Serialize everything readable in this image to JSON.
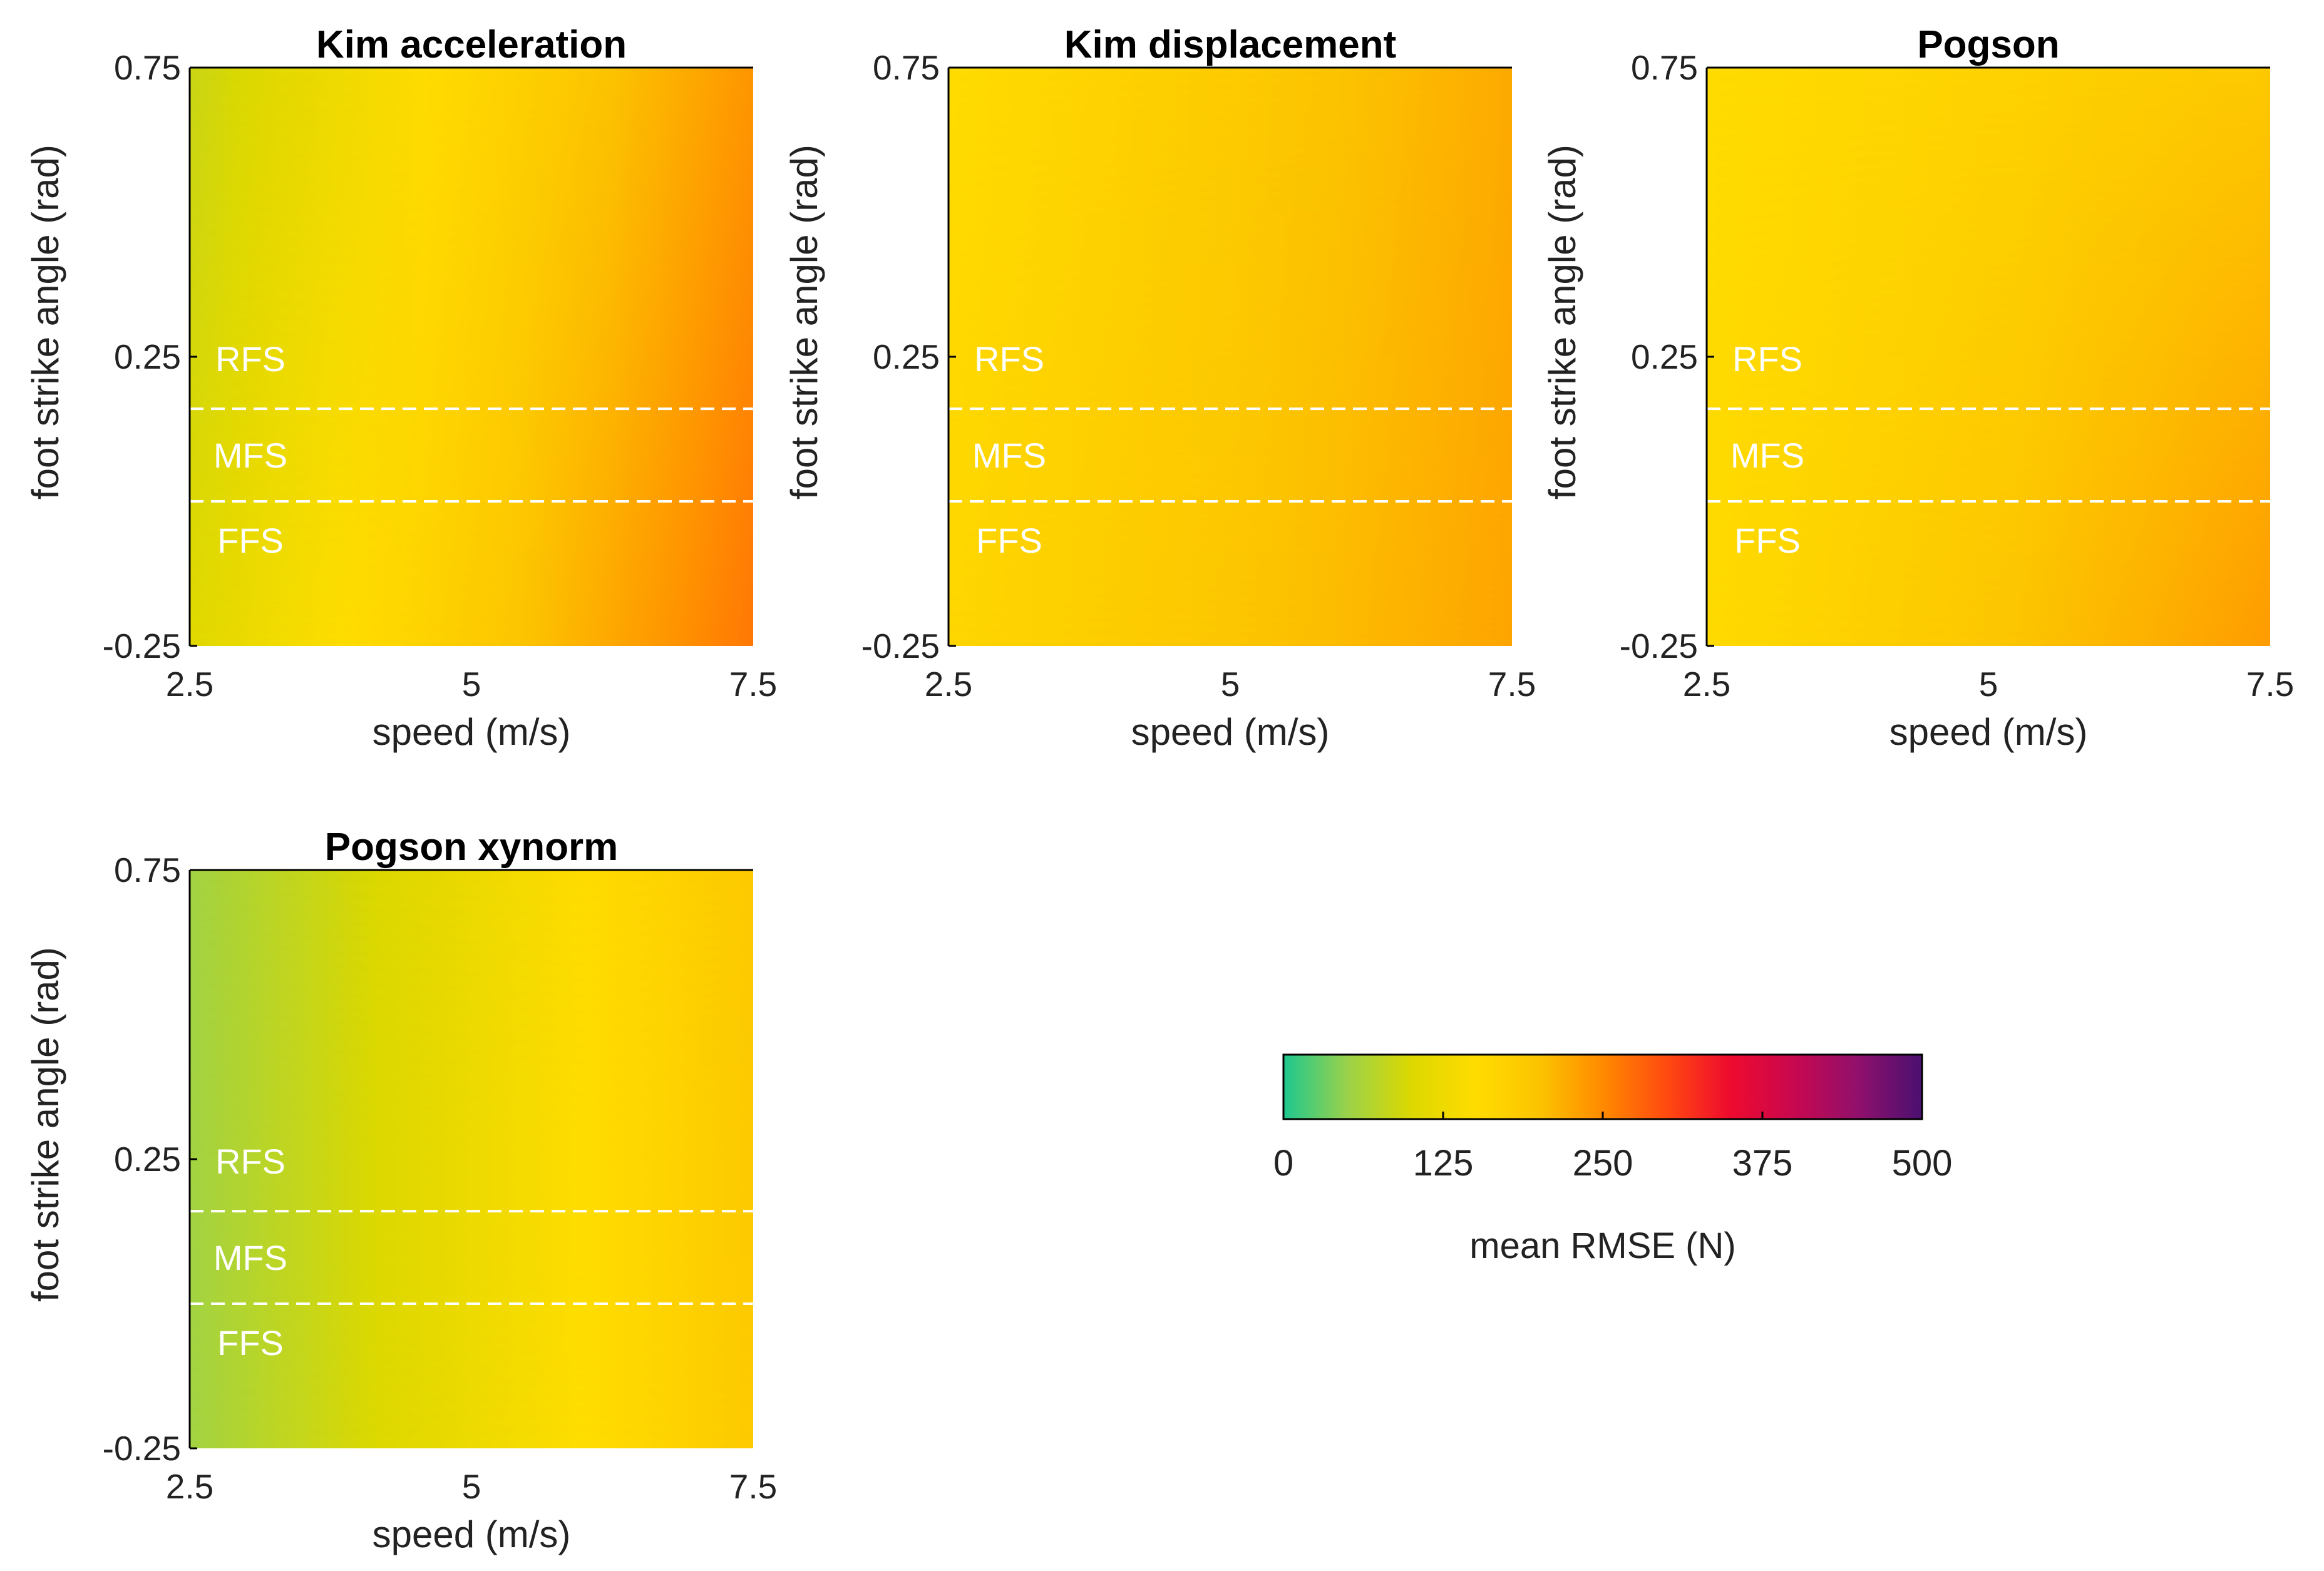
{
  "chart_data": [
    {
      "type": "heatmap",
      "title": "Kim acceleration",
      "xlabel": "speed (m/s)",
      "ylabel": "foot strike angle (rad)",
      "xlim": [
        2.5,
        7.5
      ],
      "ylim": [
        -0.25,
        0.75
      ],
      "xticks": [
        "2.5",
        "5",
        "7.5"
      ],
      "yticks": [
        "-0.25",
        "0.25",
        "0.75"
      ],
      "colorbar_range": [
        0,
        500
      ],
      "rmse_model": {
        "at_x_min_y_min": 105,
        "at_x_max_y_min": 265,
        "at_x_min_y_max": 85,
        "at_x_max_y_max": 240
      },
      "boundaries": [
        0.16,
        0.0
      ],
      "regions": [
        "RFS",
        "MFS",
        "FFS"
      ]
    },
    {
      "type": "heatmap",
      "title": "Kim displacement",
      "xlabel": "speed (m/s)",
      "ylabel": "foot strike angle (rad)",
      "xlim": [
        2.5,
        7.5
      ],
      "ylim": [
        -0.25,
        0.75
      ],
      "xticks": [
        "2.5",
        "5",
        "7.5"
      ],
      "yticks": [
        "-0.25",
        "0.25",
        "0.75"
      ],
      "colorbar_range": [
        0,
        500
      ],
      "rmse_model": {
        "at_x_min_y_min": 165,
        "at_x_max_y_min": 228,
        "at_x_min_y_max": 150,
        "at_x_max_y_max": 222
      },
      "boundaries": [
        0.16,
        0.0
      ],
      "regions": [
        "RFS",
        "MFS",
        "FFS"
      ]
    },
    {
      "type": "heatmap",
      "title": "Pogson",
      "xlabel": "speed (m/s)",
      "ylabel": "foot strike angle (rad)",
      "xlim": [
        2.5,
        7.5
      ],
      "ylim": [
        -0.25,
        0.75
      ],
      "xticks": [
        "2.5",
        "5",
        "7.5"
      ],
      "yticks": [
        "-0.25",
        "0.25",
        "0.75"
      ],
      "colorbar_range": [
        0,
        500
      ],
      "rmse_model": {
        "at_x_min_y_min": 155,
        "at_x_max_y_min": 235,
        "at_x_min_y_max": 150,
        "at_x_max_y_max": 190
      },
      "boundaries": [
        0.16,
        0.0
      ],
      "regions": [
        "RFS",
        "MFS",
        "FFS"
      ]
    },
    {
      "type": "heatmap",
      "title": "Pogson xynorm",
      "xlabel": "speed (m/s)",
      "ylabel": "foot strike angle (rad)",
      "xlim": [
        2.5,
        7.5
      ],
      "ylim": [
        -0.25,
        0.75
      ],
      "xticks": [
        "2.5",
        "5",
        "7.5"
      ],
      "yticks": [
        "-0.25",
        "0.25",
        "0.75"
      ],
      "colorbar_range": [
        0,
        500
      ],
      "rmse_model": {
        "at_x_min_y_min": 55,
        "at_x_max_y_min": 190,
        "at_x_min_y_max": 55,
        "at_x_max_y_max": 190
      },
      "boundaries": [
        0.16,
        0.0
      ],
      "regions": [
        "RFS",
        "MFS",
        "FFS"
      ]
    }
  ],
  "colorbar": {
    "label": "mean RMSE (N)",
    "ticks": [
      "0",
      "125",
      "250",
      "375",
      "500"
    ],
    "min": 0,
    "max": 500,
    "colors": [
      "#1dc790",
      "#9bd24a",
      "#dcd800",
      "#ffdc00",
      "#fcc400",
      "#ff8a00",
      "#ff4a10",
      "#ee0a2e",
      "#c80850",
      "#90106c",
      "#4a1070"
    ]
  }
}
